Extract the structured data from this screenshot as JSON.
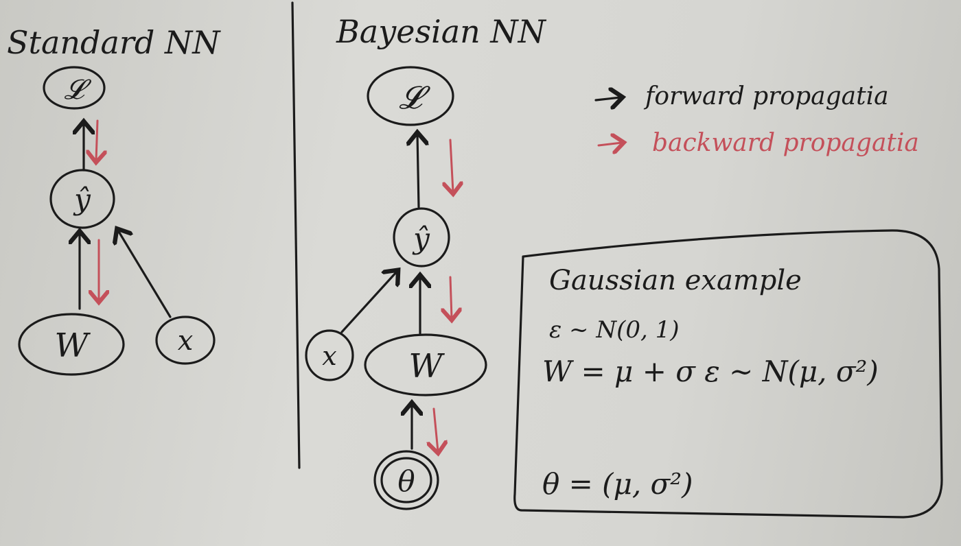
{
  "sections": {
    "standard_title": "Standard NN",
    "bayesian_title": "Bayesian NN"
  },
  "nodes": {
    "loss": "𝓛",
    "y_hat": "ŷ",
    "weights": "W",
    "input": "x",
    "theta": "θ"
  },
  "legend": {
    "forward": "forward propagatia",
    "backward": "backward propagatia"
  },
  "gaussian_box": {
    "title": "Gaussian example",
    "eq1": "ε ~ N(0, 1)",
    "eq2": "W = μ + σ ε ~ N(μ, σ²)",
    "eq3": "θ = (μ, σ²)"
  },
  "colors": {
    "ink": "#1b1b1b",
    "red_marker": "#c4505a",
    "board": "#d6d6d2"
  }
}
